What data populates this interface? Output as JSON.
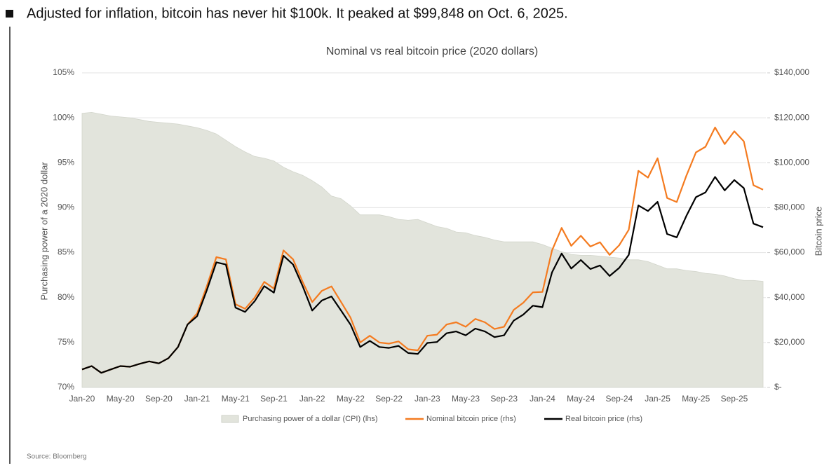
{
  "headline": "Adjusted for inflation, bitcoin has never hit $100k. It peaked at $99,848 on Oct. 6, 2025.",
  "source": "Source: Bloomberg",
  "chart_data": {
    "type": "line",
    "title": "Nominal vs real bitcoin price (2020 dollars)",
    "ylabel": "Purchasing power of a 2020 dollar",
    "y2label": "Bitcoin price",
    "grid": true,
    "legend": "bottom",
    "categories": [
      "Jan-20",
      null,
      null,
      null,
      "May-20",
      null,
      null,
      null,
      "Sep-20",
      null,
      null,
      null,
      "Jan-21",
      null,
      null,
      null,
      "May-21",
      null,
      null,
      null,
      "Sep-21",
      null,
      null,
      null,
      "Jan-22",
      null,
      null,
      null,
      "May-22",
      null,
      null,
      null,
      "Sep-22",
      null,
      null,
      null,
      "Jan-23",
      null,
      null,
      null,
      "May-23",
      null,
      null,
      null,
      "Sep-23",
      null,
      null,
      null,
      "Jan-24",
      null,
      null,
      null,
      "May-24",
      null,
      null,
      null,
      "Sep-24",
      null,
      null,
      null,
      "Jan-25",
      null,
      null,
      null,
      "May-25",
      null,
      null,
      null,
      "Sep-25",
      null,
      null,
      null
    ],
    "ylim": [
      70,
      105
    ],
    "yticks": [
      {
        "value": 70,
        "label": "70%"
      },
      {
        "value": 75,
        "label": "75%"
      },
      {
        "value": 80,
        "label": "80%"
      },
      {
        "value": 85,
        "label": "85%"
      },
      {
        "value": 90,
        "label": "90%"
      },
      {
        "value": 95,
        "label": "95%"
      },
      {
        "value": 100,
        "label": "100%"
      },
      {
        "value": 105,
        "label": "105%"
      }
    ],
    "y2lim": [
      0,
      140000
    ],
    "y2ticks": [
      {
        "value": 0,
        "label": "$-"
      },
      {
        "value": 20000,
        "label": "$20,000"
      },
      {
        "value": 40000,
        "label": "$40,000"
      },
      {
        "value": 60000,
        "label": "$60,000"
      },
      {
        "value": 80000,
        "label": "$80,000"
      },
      {
        "value": 100000,
        "label": "$100,000"
      },
      {
        "value": 120000,
        "label": "$120,000"
      },
      {
        "value": 140000,
        "label": "$140,000"
      }
    ],
    "series": [
      {
        "name": "Purchasing power of a dollar (CPI) (lhs)",
        "kind": "area",
        "axis": "y",
        "color": "#e2e4dc",
        "values": [
          100.5,
          100.6,
          100.4,
          100.2,
          100.1,
          100.0,
          99.8,
          99.6,
          99.5,
          99.4,
          99.3,
          99.1,
          98.9,
          98.6,
          98.2,
          97.5,
          96.8,
          96.2,
          95.7,
          95.5,
          95.2,
          94.5,
          94.0,
          93.6,
          93.0,
          92.3,
          91.3,
          91.0,
          90.2,
          89.2,
          89.2,
          89.2,
          89.0,
          88.7,
          88.6,
          88.7,
          88.3,
          87.9,
          87.7,
          87.3,
          87.2,
          86.9,
          86.7,
          86.4,
          86.2,
          86.2,
          86.2,
          86.2,
          85.9,
          85.5,
          85.1,
          84.8,
          84.7,
          84.7,
          84.6,
          84.5,
          84.4,
          84.2,
          84.2,
          84.0,
          83.6,
          83.2,
          83.2,
          83.0,
          82.9,
          82.7,
          82.6,
          82.4,
          82.1,
          81.9,
          81.9,
          81.8
        ]
      },
      {
        "name": "Nominal bitcoin price (rhs)",
        "kind": "line",
        "axis": "y2",
        "color": "#f47b20",
        "values": [
          8000,
          9500,
          6500,
          8000,
          9500,
          9200,
          10500,
          11600,
          10700,
          13000,
          18000,
          28000,
          33000,
          45000,
          58000,
          57000,
          37000,
          35000,
          40000,
          47000,
          44000,
          61000,
          57000,
          47000,
          38000,
          43000,
          45000,
          38000,
          31000,
          20000,
          23000,
          20000,
          19500,
          20500,
          17000,
          16500,
          23000,
          23500,
          28000,
          29000,
          27000,
          30500,
          29000,
          26000,
          27000,
          34500,
          37700,
          42300,
          42500,
          61000,
          71000,
          63000,
          67500,
          62700,
          64600,
          59000,
          63300,
          70200,
          96400,
          93400,
          102000,
          84300,
          82500,
          94200,
          104600,
          107100,
          115700,
          108300,
          114000,
          109500,
          90000,
          88000
        ]
      },
      {
        "name": "Real bitcoin price (rhs)",
        "kind": "line",
        "axis": "y2",
        "color": "#000000",
        "values": [
          8000,
          9500,
          6500,
          8000,
          9500,
          9200,
          10500,
          11600,
          10700,
          13000,
          18000,
          28000,
          31700,
          43200,
          55700,
          54700,
          35500,
          33600,
          38400,
          45100,
          42200,
          58600,
          54700,
          45100,
          34200,
          38700,
          40500,
          34200,
          27900,
          18000,
          20700,
          18000,
          17600,
          18500,
          15300,
          14900,
          19800,
          20200,
          24100,
          24900,
          23200,
          26200,
          24900,
          22400,
          23200,
          29700,
          32400,
          36400,
          35700,
          51200,
          59600,
          52900,
          56700,
          52700,
          54300,
          49600,
          53200,
          59000,
          81000,
          78500,
          82600,
          68300,
          66800,
          76300,
          84700,
          86800,
          93700,
          87700,
          92300,
          88700,
          72900,
          71300
        ]
      }
    ]
  }
}
